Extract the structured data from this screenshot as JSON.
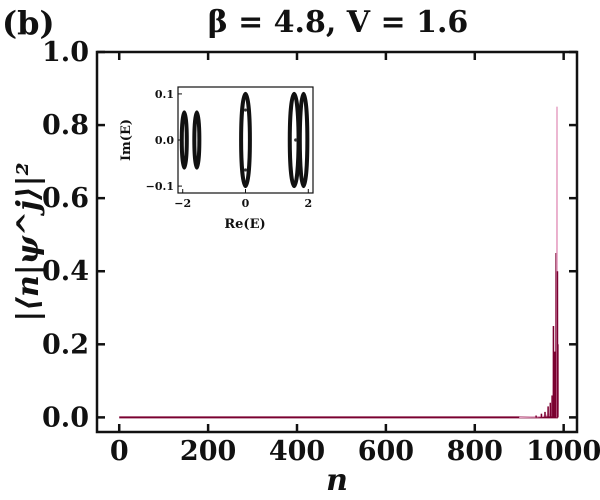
{
  "panel_label": "(b)",
  "chart_data": [
    {
      "type": "line",
      "title": "β = 4.8, V = 1.6",
      "xlabel": "n",
      "ylabel": "|⟨n|ψ^j⟩|²",
      "xlim": [
        -50,
        1030
      ],
      "ylim": [
        -0.04,
        1.0
      ],
      "x_ticks": [
        "0",
        "200",
        "400",
        "600",
        "800",
        "1000"
      ],
      "y_ticks": [
        "0.0",
        "0.2",
        "0.4",
        "0.6",
        "0.8",
        "1.0"
      ],
      "grid": false,
      "series_color_range": [
        "#e8a8c8",
        "#7a0030"
      ],
      "n_max": 987,
      "peaks": [
        {
          "n": 938,
          "value": 0.005
        },
        {
          "n": 950,
          "value": 0.01
        },
        {
          "n": 958,
          "value": 0.015
        },
        {
          "n": 965,
          "value": 0.03
        },
        {
          "n": 970,
          "value": 0.04
        },
        {
          "n": 974,
          "value": 0.06
        },
        {
          "n": 977,
          "value": 0.25
        },
        {
          "n": 980,
          "value": 0.18
        },
        {
          "n": 983,
          "value": 0.45
        },
        {
          "n": 984,
          "value": 0.3
        },
        {
          "n": 985,
          "value": 0.85
        },
        {
          "n": 986,
          "value": 0.4
        },
        {
          "n": 987,
          "value": 0.2
        }
      ]
    },
    {
      "type": "scatter",
      "name": "inset",
      "xlabel": "Re(E)",
      "ylabel": "Im(E)",
      "xlim": [
        -2.15,
        2.15
      ],
      "ylim": [
        -0.115,
        0.115
      ],
      "x_ticks": [
        "−2",
        "0",
        "2"
      ],
      "y_ticks": [
        "−0.1",
        "0.0",
        "0.1"
      ],
      "clusters": [
        {
          "center": -1.95,
          "half_width": 0.08,
          "half_height": 0.06
        },
        {
          "center": -1.55,
          "half_width": 0.08,
          "half_height": 0.06
        },
        {
          "center": 0.0,
          "half_width": 0.14,
          "half_height": 0.1
        },
        {
          "center": 1.55,
          "half_width": 0.14,
          "half_height": 0.1
        },
        {
          "center": 1.85,
          "half_width": 0.12,
          "half_height": 0.1
        }
      ],
      "interior_points": [
        [
          0.0,
          0.065
        ],
        [
          0.0,
          -0.065
        ],
        [
          1.6,
          0.0
        ]
      ]
    }
  ]
}
